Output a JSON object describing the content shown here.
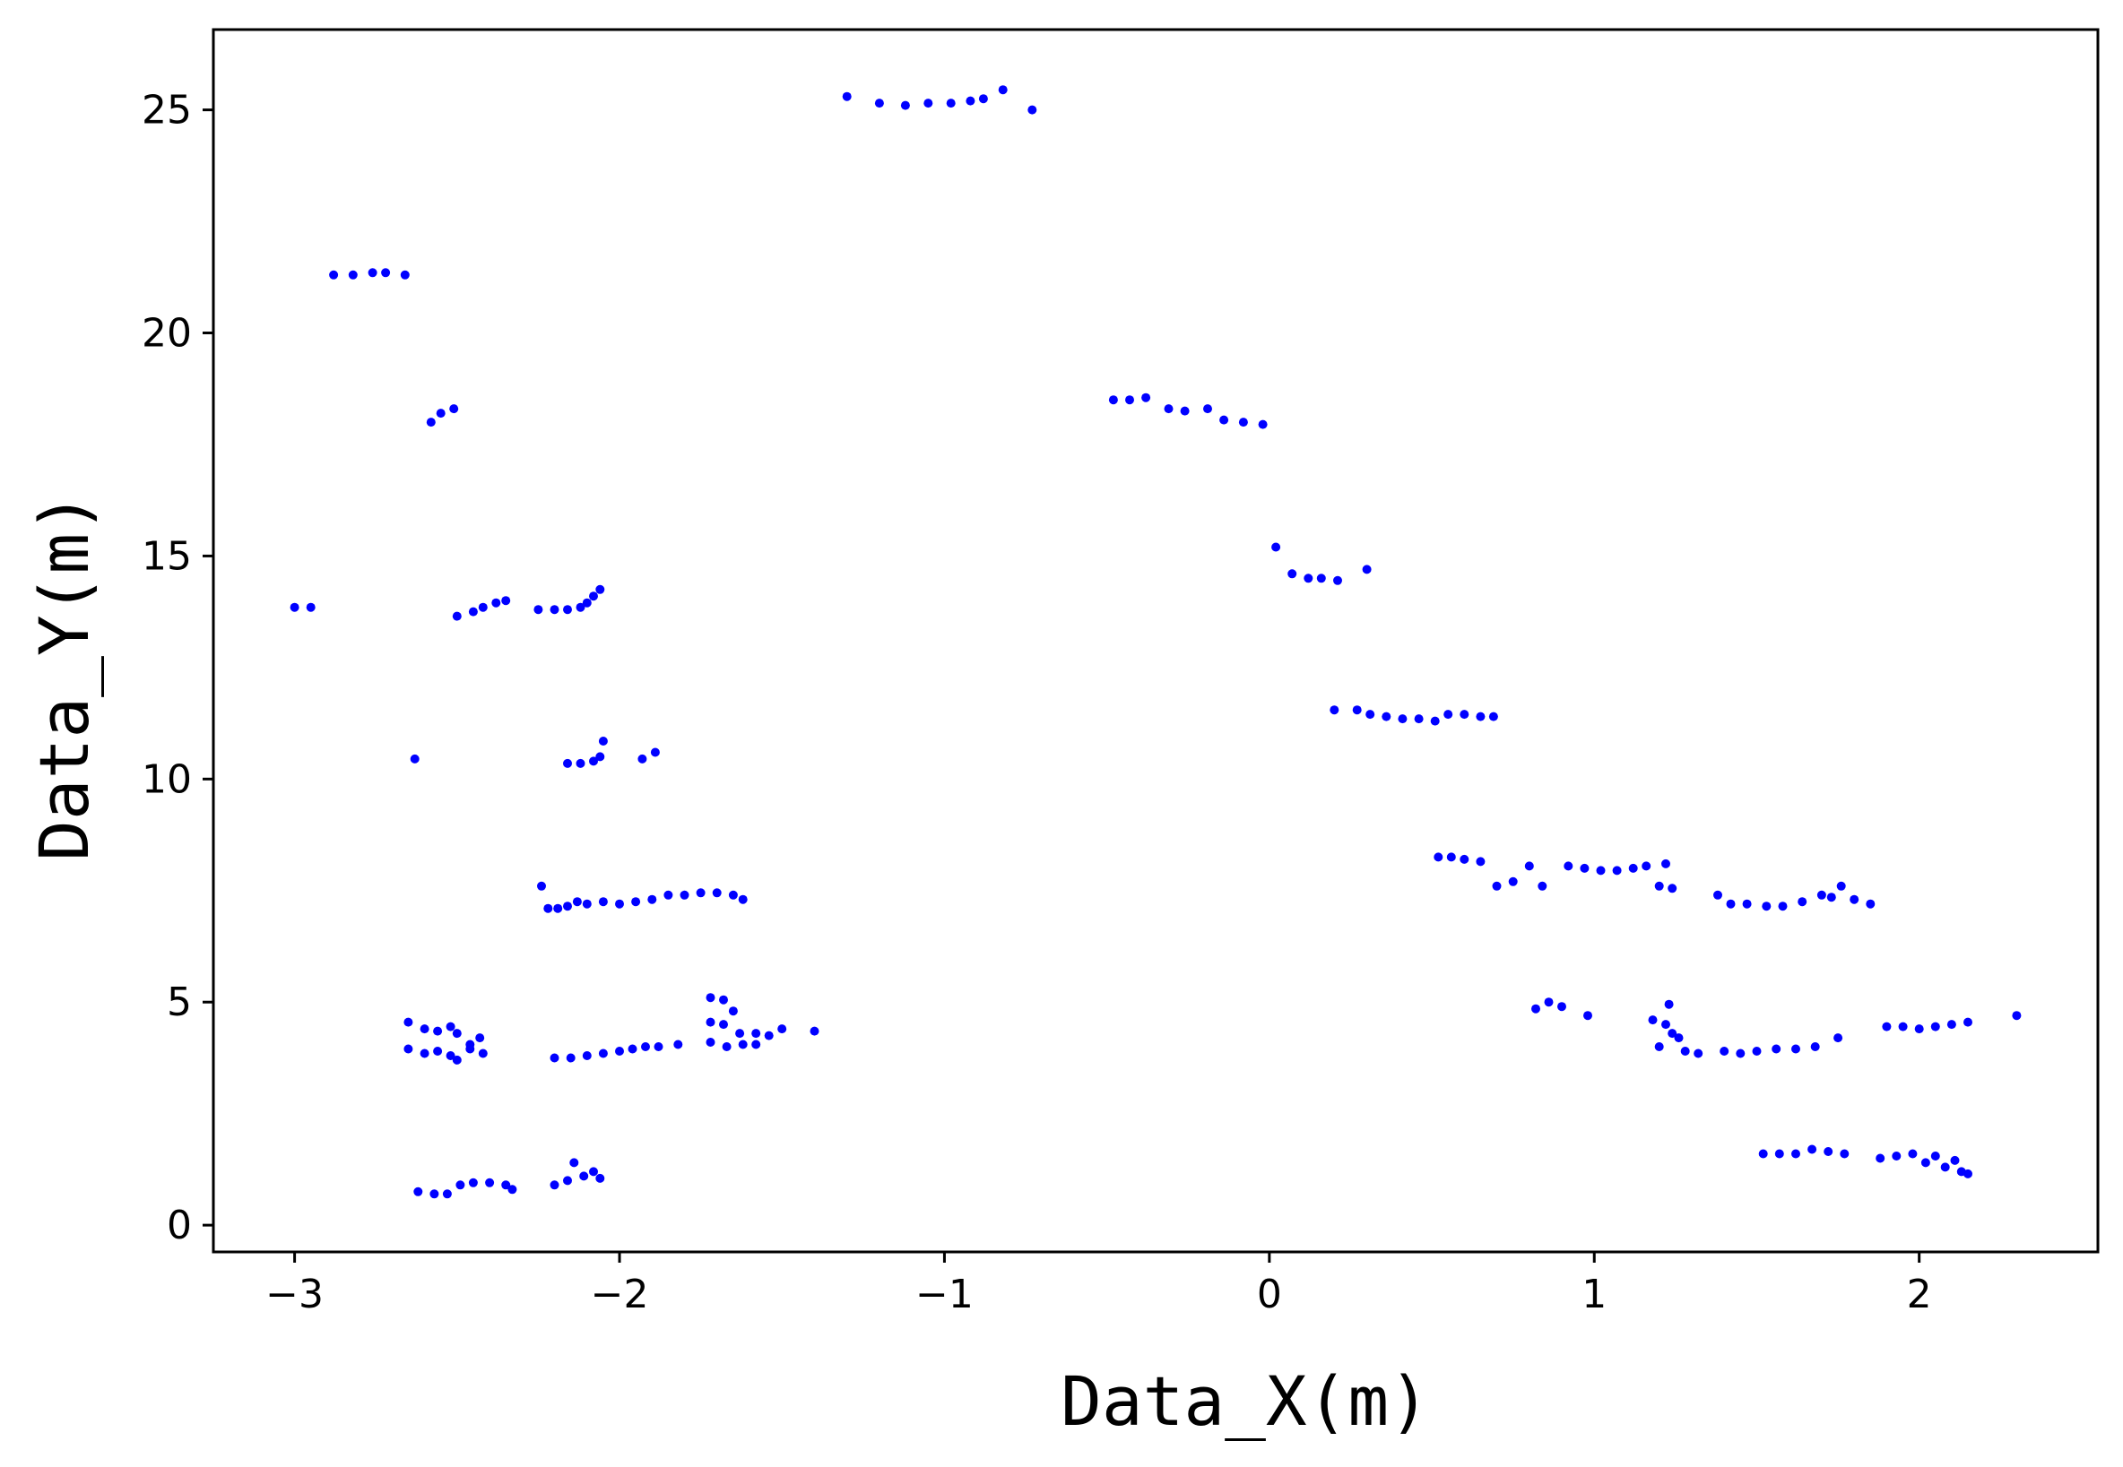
{
  "chart_data": {
    "type": "scatter",
    "title": "",
    "xlabel": "Data_X(m)",
    "ylabel": "Data_Y(m)",
    "xlim": [
      -3.25,
      2.55
    ],
    "ylim": [
      -0.6,
      26.8
    ],
    "xticks": [
      -3,
      -2,
      -1,
      0,
      1,
      2
    ],
    "yticks": [
      0,
      5,
      10,
      15,
      20,
      25
    ],
    "xtick_labels": [
      "−3",
      "−2",
      "−1",
      "0",
      "1",
      "2"
    ],
    "ytick_labels": [
      "0",
      "5",
      "10",
      "15",
      "20",
      "25"
    ],
    "grid": false,
    "legend": "none",
    "colors": {
      "points": "#0000ff",
      "frame": "#000000",
      "background": "#ffffff"
    },
    "series": [
      {
        "points": [
          [
            -1.3,
            25.3
          ],
          [
            -1.2,
            25.15
          ],
          [
            -1.12,
            25.1
          ],
          [
            -1.05,
            25.15
          ],
          [
            -0.98,
            25.15
          ],
          [
            -0.92,
            25.2
          ],
          [
            -0.88,
            25.25
          ],
          [
            -0.82,
            25.45
          ],
          [
            -0.73,
            25.0
          ],
          [
            -2.88,
            21.3
          ],
          [
            -2.82,
            21.3
          ],
          [
            -2.76,
            21.35
          ],
          [
            -2.72,
            21.35
          ],
          [
            -2.66,
            21.3
          ],
          [
            -2.58,
            18.0
          ],
          [
            -2.55,
            18.2
          ],
          [
            -2.51,
            18.3
          ],
          [
            -0.48,
            18.5
          ],
          [
            -0.43,
            18.5
          ],
          [
            -0.38,
            18.55
          ],
          [
            -0.31,
            18.3
          ],
          [
            -0.26,
            18.25
          ],
          [
            -0.19,
            18.3
          ],
          [
            -0.14,
            18.05
          ],
          [
            -0.08,
            18.0
          ],
          [
            -0.02,
            17.95
          ],
          [
            0.02,
            15.2
          ],
          [
            0.07,
            14.6
          ],
          [
            0.12,
            14.5
          ],
          [
            0.16,
            14.5
          ],
          [
            0.21,
            14.45
          ],
          [
            0.3,
            14.7
          ],
          [
            -3.0,
            13.85
          ],
          [
            -2.95,
            13.85
          ],
          [
            -2.5,
            13.65
          ],
          [
            -2.45,
            13.75
          ],
          [
            -2.42,
            13.85
          ],
          [
            -2.38,
            13.95
          ],
          [
            -2.35,
            14.0
          ],
          [
            -2.25,
            13.8
          ],
          [
            -2.2,
            13.8
          ],
          [
            -2.16,
            13.8
          ],
          [
            -2.12,
            13.85
          ],
          [
            -2.1,
            13.95
          ],
          [
            -2.08,
            14.1
          ],
          [
            -2.06,
            14.25
          ],
          [
            0.2,
            11.55
          ],
          [
            0.27,
            11.55
          ],
          [
            0.31,
            11.45
          ],
          [
            0.36,
            11.4
          ],
          [
            0.41,
            11.35
          ],
          [
            0.46,
            11.35
          ],
          [
            0.51,
            11.3
          ],
          [
            0.55,
            11.45
          ],
          [
            0.6,
            11.45
          ],
          [
            0.65,
            11.4
          ],
          [
            0.69,
            11.4
          ],
          [
            -2.63,
            10.45
          ],
          [
            -2.16,
            10.35
          ],
          [
            -2.12,
            10.35
          ],
          [
            -2.08,
            10.4
          ],
          [
            -2.06,
            10.5
          ],
          [
            -2.05,
            10.85
          ],
          [
            -1.93,
            10.45
          ],
          [
            -1.89,
            10.6
          ],
          [
            -2.24,
            7.6
          ],
          [
            -2.22,
            7.1
          ],
          [
            -2.19,
            7.1
          ],
          [
            -2.16,
            7.15
          ],
          [
            -2.13,
            7.25
          ],
          [
            -2.1,
            7.2
          ],
          [
            -2.05,
            7.25
          ],
          [
            -2.0,
            7.2
          ],
          [
            -1.95,
            7.25
          ],
          [
            -1.9,
            7.3
          ],
          [
            -1.85,
            7.4
          ],
          [
            -1.8,
            7.4
          ],
          [
            -1.75,
            7.45
          ],
          [
            -1.7,
            7.45
          ],
          [
            -1.65,
            7.4
          ],
          [
            -1.62,
            7.3
          ],
          [
            0.52,
            8.25
          ],
          [
            0.56,
            8.25
          ],
          [
            0.6,
            8.2
          ],
          [
            0.65,
            8.15
          ],
          [
            0.7,
            7.6
          ],
          [
            0.75,
            7.7
          ],
          [
            0.8,
            8.05
          ],
          [
            0.84,
            7.6
          ],
          [
            0.92,
            8.05
          ],
          [
            0.97,
            8.0
          ],
          [
            1.02,
            7.95
          ],
          [
            1.07,
            7.95
          ],
          [
            1.12,
            8.0
          ],
          [
            1.16,
            8.05
          ],
          [
            1.2,
            7.6
          ],
          [
            1.22,
            8.1
          ],
          [
            1.24,
            7.55
          ],
          [
            1.38,
            7.4
          ],
          [
            1.42,
            7.2
          ],
          [
            1.47,
            7.2
          ],
          [
            1.53,
            7.15
          ],
          [
            1.58,
            7.15
          ],
          [
            1.64,
            7.25
          ],
          [
            1.7,
            7.4
          ],
          [
            1.73,
            7.35
          ],
          [
            1.76,
            7.6
          ],
          [
            1.8,
            7.3
          ],
          [
            1.85,
            7.2
          ],
          [
            -2.65,
            4.55
          ],
          [
            -2.6,
            4.4
          ],
          [
            -2.56,
            4.35
          ],
          [
            -2.52,
            4.45
          ],
          [
            -2.5,
            4.3
          ],
          [
            -2.46,
            4.05
          ],
          [
            -2.43,
            4.2
          ],
          [
            -2.65,
            3.95
          ],
          [
            -2.6,
            3.85
          ],
          [
            -2.56,
            3.9
          ],
          [
            -2.52,
            3.8
          ],
          [
            -2.5,
            3.7
          ],
          [
            -2.46,
            3.95
          ],
          [
            -2.42,
            3.85
          ],
          [
            -2.2,
            3.75
          ],
          [
            -2.15,
            3.75
          ],
          [
            -2.1,
            3.8
          ],
          [
            -2.05,
            3.85
          ],
          [
            -2.0,
            3.9
          ],
          [
            -1.96,
            3.95
          ],
          [
            -1.92,
            4.0
          ],
          [
            -1.88,
            4.0
          ],
          [
            -1.82,
            4.05
          ],
          [
            -1.72,
            5.1
          ],
          [
            -1.68,
            5.05
          ],
          [
            -1.65,
            4.8
          ],
          [
            -1.72,
            4.55
          ],
          [
            -1.68,
            4.5
          ],
          [
            -1.63,
            4.3
          ],
          [
            -1.58,
            4.3
          ],
          [
            -1.54,
            4.25
          ],
          [
            -1.5,
            4.4
          ],
          [
            -1.72,
            4.1
          ],
          [
            -1.67,
            4.0
          ],
          [
            -1.62,
            4.05
          ],
          [
            -1.58,
            4.05
          ],
          [
            -1.4,
            4.35
          ],
          [
            0.82,
            4.85
          ],
          [
            0.86,
            5.0
          ],
          [
            0.9,
            4.9
          ],
          [
            0.98,
            4.7
          ],
          [
            1.18,
            4.6
          ],
          [
            1.22,
            4.5
          ],
          [
            1.24,
            4.3
          ],
          [
            1.2,
            4.0
          ],
          [
            1.26,
            4.2
          ],
          [
            1.23,
            4.95
          ],
          [
            1.28,
            3.9
          ],
          [
            1.32,
            3.85
          ],
          [
            1.4,
            3.9
          ],
          [
            1.45,
            3.85
          ],
          [
            1.5,
            3.9
          ],
          [
            1.56,
            3.95
          ],
          [
            1.62,
            3.95
          ],
          [
            1.68,
            4.0
          ],
          [
            1.75,
            4.2
          ],
          [
            1.9,
            4.45
          ],
          [
            1.95,
            4.45
          ],
          [
            2.0,
            4.4
          ],
          [
            2.05,
            4.45
          ],
          [
            2.1,
            4.5
          ],
          [
            2.15,
            4.55
          ],
          [
            2.3,
            4.7
          ],
          [
            -2.62,
            0.75
          ],
          [
            -2.57,
            0.7
          ],
          [
            -2.53,
            0.7
          ],
          [
            -2.49,
            0.9
          ],
          [
            -2.45,
            0.95
          ],
          [
            -2.4,
            0.95
          ],
          [
            -2.35,
            0.9
          ],
          [
            -2.33,
            0.8
          ],
          [
            -2.2,
            0.9
          ],
          [
            -2.16,
            1.0
          ],
          [
            -2.14,
            1.4
          ],
          [
            -2.11,
            1.1
          ],
          [
            -2.08,
            1.2
          ],
          [
            -2.06,
            1.05
          ],
          [
            1.52,
            1.6
          ],
          [
            1.57,
            1.6
          ],
          [
            1.62,
            1.6
          ],
          [
            1.67,
            1.7
          ],
          [
            1.72,
            1.65
          ],
          [
            1.77,
            1.6
          ],
          [
            1.88,
            1.5
          ],
          [
            1.93,
            1.55
          ],
          [
            1.98,
            1.6
          ],
          [
            2.02,
            1.4
          ],
          [
            2.05,
            1.55
          ],
          [
            2.08,
            1.3
          ],
          [
            2.11,
            1.45
          ],
          [
            2.13,
            1.2
          ],
          [
            2.15,
            1.15
          ]
        ]
      }
    ]
  }
}
